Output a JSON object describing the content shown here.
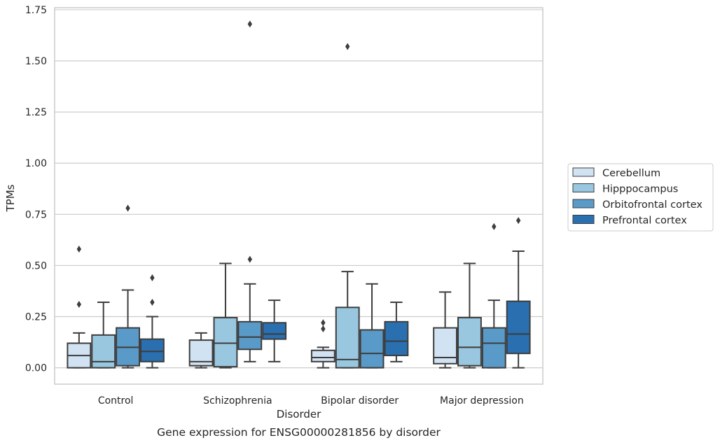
{
  "chart_data": {
    "type": "boxplot",
    "xlabel": "Disorder",
    "ylabel": "TPMs",
    "caption": "Gene expression for ENSG00000281856 by disorder",
    "ylim": [
      -0.08,
      1.76
    ],
    "yticks": [
      "0.00",
      "0.25",
      "0.50",
      "0.75",
      "1.00",
      "1.25",
      "1.50",
      "1.75"
    ],
    "grid": "horizontal",
    "legend_position": "outside-right",
    "categories": [
      "Control",
      "Schizophrenia",
      "Bipolar disorder",
      "Major depression"
    ],
    "series": [
      {
        "name": "Cerebellum",
        "color": "#d1e2f2",
        "boxes": [
          {
            "whislo": 0.0,
            "q1": 0.0,
            "med": 0.06,
            "q3": 0.12,
            "whishi": 0.17,
            "fliers": [
              0.31,
              0.58
            ]
          },
          {
            "whislo": 0.0,
            "q1": 0.01,
            "med": 0.03,
            "q3": 0.135,
            "whishi": 0.17,
            "fliers": []
          },
          {
            "whislo": 0.0,
            "q1": 0.03,
            "med": 0.05,
            "q3": 0.085,
            "whishi": 0.1,
            "fliers": [
              0.19,
              0.22
            ]
          },
          {
            "whislo": 0.0,
            "q1": 0.02,
            "med": 0.05,
            "q3": 0.195,
            "whishi": 0.37,
            "fliers": []
          }
        ]
      },
      {
        "name": "Hipppocampus",
        "color": "#9ac7e0",
        "boxes": [
          {
            "whislo": 0.0,
            "q1": 0.0,
            "med": 0.03,
            "q3": 0.16,
            "whishi": 0.32,
            "fliers": []
          },
          {
            "whislo": 0.0,
            "q1": 0.005,
            "med": 0.12,
            "q3": 0.245,
            "whishi": 0.51,
            "fliers": []
          },
          {
            "whislo": 0.0,
            "q1": 0.0,
            "med": 0.04,
            "q3": 0.295,
            "whishi": 0.47,
            "fliers": [
              1.57
            ]
          },
          {
            "whislo": 0.0,
            "q1": 0.01,
            "med": 0.1,
            "q3": 0.245,
            "whishi": 0.51,
            "fliers": []
          }
        ]
      },
      {
        "name": "Orbitofrontal cortex",
        "color": "#5a9ac8",
        "boxes": [
          {
            "whislo": 0.0,
            "q1": 0.01,
            "med": 0.1,
            "q3": 0.195,
            "whishi": 0.38,
            "fliers": [
              0.78
            ]
          },
          {
            "whislo": 0.03,
            "q1": 0.09,
            "med": 0.15,
            "q3": 0.225,
            "whishi": 0.41,
            "fliers": [
              0.53,
              1.68
            ]
          },
          {
            "whislo": 0.0,
            "q1": 0.0,
            "med": 0.07,
            "q3": 0.185,
            "whishi": 0.41,
            "fliers": []
          },
          {
            "whislo": 0.0,
            "q1": 0.0,
            "med": 0.12,
            "q3": 0.195,
            "whishi": 0.33,
            "fliers": [
              0.69
            ]
          }
        ]
      },
      {
        "name": "Prefrontal cortex",
        "color": "#2a6faf",
        "boxes": [
          {
            "whislo": 0.0,
            "q1": 0.03,
            "med": 0.08,
            "q3": 0.14,
            "whishi": 0.25,
            "fliers": [
              0.32,
              0.44
            ]
          },
          {
            "whislo": 0.03,
            "q1": 0.14,
            "med": 0.165,
            "q3": 0.22,
            "whishi": 0.33,
            "fliers": []
          },
          {
            "whislo": 0.03,
            "q1": 0.06,
            "med": 0.13,
            "q3": 0.225,
            "whishi": 0.32,
            "fliers": []
          },
          {
            "whislo": 0.0,
            "q1": 0.07,
            "med": 0.165,
            "q3": 0.325,
            "whishi": 0.57,
            "fliers": [
              0.72
            ]
          }
        ]
      }
    ]
  }
}
